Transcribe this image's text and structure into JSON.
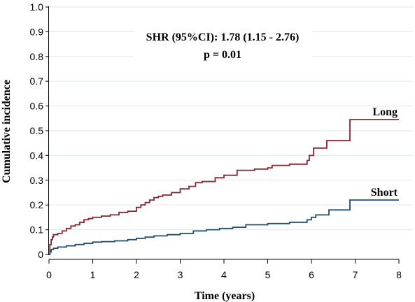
{
  "chart_data": {
    "type": "line",
    "step": true,
    "title": "",
    "xlabel": "Time (years)",
    "ylabel": "Cumulative incidence",
    "xlim": [
      0,
      8
    ],
    "ylim": [
      0,
      1.0
    ],
    "xticks": [
      "0",
      "1",
      "2",
      "3",
      "4",
      "5",
      "6",
      "7",
      "8"
    ],
    "yticks": [
      "0",
      "0.1",
      "0.2",
      "0.3",
      "0.4",
      "0.5",
      "0.6",
      "0.7",
      "0.8",
      "0.9",
      "1.0"
    ],
    "grid": "horizontal",
    "annotation": [
      "SHR (95%CI): 1.78 (1.15 - 2.76)",
      "p = 0.01"
    ],
    "series": [
      {
        "name": "Long",
        "color": "#8b2331",
        "x": [
          0,
          0.02,
          0.05,
          0.08,
          0.1,
          0.2,
          0.3,
          0.4,
          0.5,
          0.6,
          0.7,
          0.8,
          0.9,
          1.0,
          1.2,
          1.4,
          1.6,
          1.8,
          2.0,
          2.1,
          2.2,
          2.3,
          2.4,
          2.5,
          2.6,
          2.8,
          3.0,
          3.2,
          3.35,
          3.5,
          3.8,
          4.0,
          4.3,
          4.7,
          5.0,
          5.1,
          5.5,
          5.9,
          5.95,
          6.05,
          6.35,
          6.88,
          8.0
        ],
        "y": [
          0,
          0.04,
          0.06,
          0.07,
          0.08,
          0.085,
          0.095,
          0.105,
          0.115,
          0.12,
          0.13,
          0.14,
          0.145,
          0.15,
          0.155,
          0.16,
          0.17,
          0.175,
          0.19,
          0.2,
          0.21,
          0.22,
          0.23,
          0.235,
          0.24,
          0.25,
          0.265,
          0.275,
          0.29,
          0.295,
          0.31,
          0.32,
          0.34,
          0.345,
          0.35,
          0.36,
          0.365,
          0.38,
          0.4,
          0.43,
          0.46,
          0.545,
          0.545
        ]
      },
      {
        "name": "Short",
        "color": "#1f4e6e",
        "x": [
          0,
          0.02,
          0.05,
          0.1,
          0.2,
          0.4,
          0.6,
          0.8,
          1.0,
          1.2,
          1.5,
          1.8,
          2.0,
          2.2,
          2.4,
          2.7,
          3.0,
          3.3,
          3.6,
          3.9,
          4.2,
          4.5,
          5.0,
          5.5,
          5.9,
          6.0,
          6.1,
          6.4,
          6.88,
          8.0
        ],
        "y": [
          0,
          0.01,
          0.02,
          0.025,
          0.03,
          0.035,
          0.04,
          0.045,
          0.05,
          0.052,
          0.055,
          0.06,
          0.065,
          0.07,
          0.075,
          0.08,
          0.085,
          0.095,
          0.1,
          0.105,
          0.11,
          0.12,
          0.125,
          0.13,
          0.14,
          0.15,
          0.16,
          0.18,
          0.22,
          0.22
        ]
      }
    ]
  }
}
